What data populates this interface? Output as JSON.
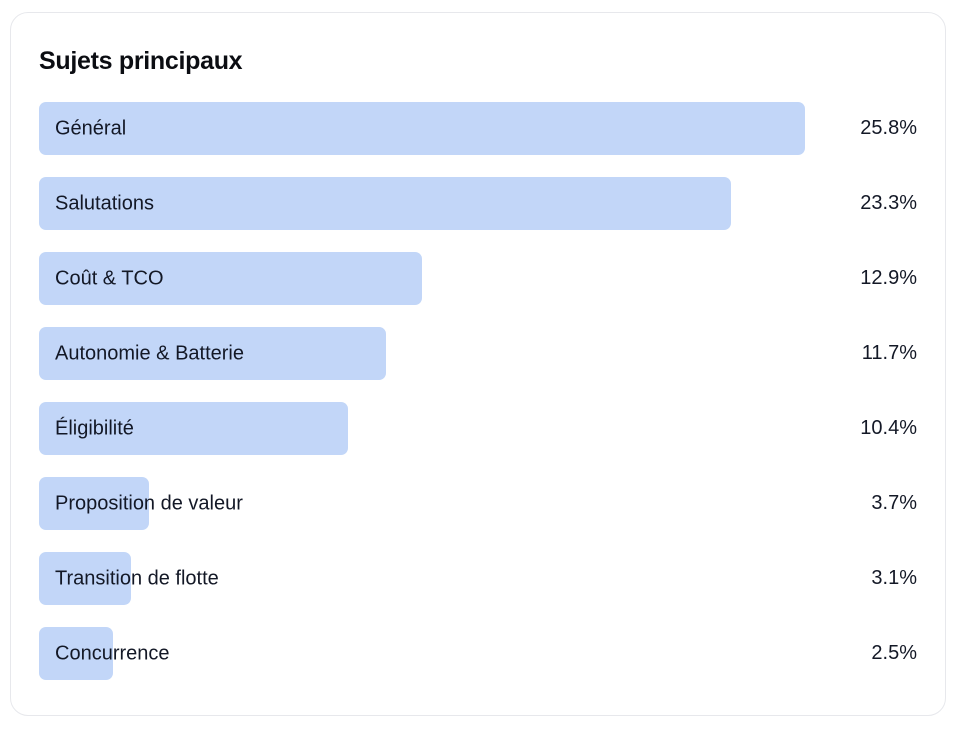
{
  "card": {
    "title": "Sujets principaux"
  },
  "colors": {
    "bar": "#c2d6f8",
    "text": "#131826",
    "title": "#0b0d12",
    "card_border": "#e7e8ec",
    "card_background": "#ffffff",
    "page_background": "#ffffff"
  },
  "chart_data": {
    "type": "bar",
    "orientation": "horizontal",
    "title": "Sujets principaux",
    "categories": [
      "Général",
      "Salutations",
      "Coût & TCO",
      "Autonomie & Batterie",
      "Éligibilité",
      "Proposition de valeur",
      "Transition de flotte",
      "Concurrence"
    ],
    "values": [
      25.8,
      23.3,
      12.9,
      11.7,
      10.4,
      3.7,
      3.1,
      2.5
    ],
    "value_labels": [
      "25.8%",
      "23.3%",
      "12.9%",
      "11.7%",
      "10.4%",
      "3.7%",
      "3.1%",
      "2.5%"
    ],
    "unit": "%",
    "xlim": [
      0,
      25.8
    ],
    "bar_scale": "relative-to-max",
    "grid": false,
    "legend": false,
    "value_label_position": "right-aligned-column",
    "category_label_position": "inside-bar-overflow"
  }
}
